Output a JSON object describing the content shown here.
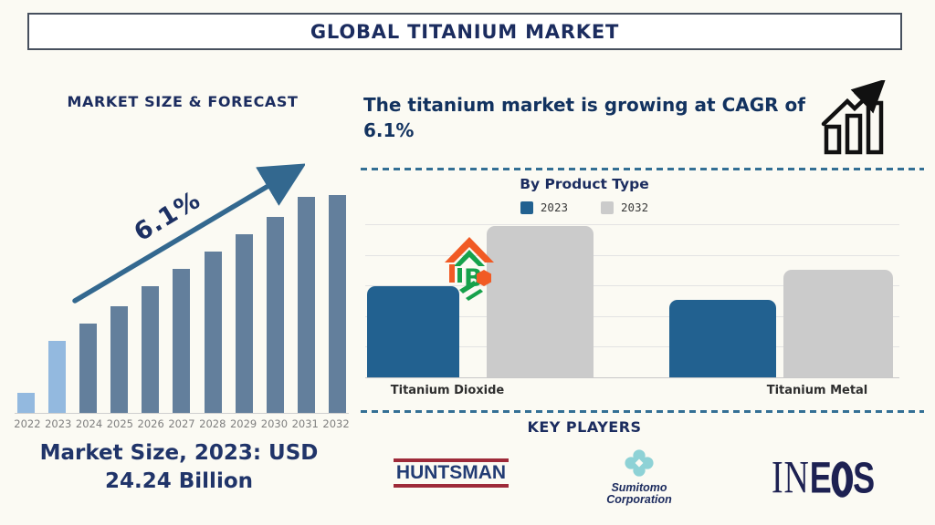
{
  "header": {
    "title": "GLOBAL TITANIUM MARKET"
  },
  "forecast_section": {
    "caption_lines": [
      "Market Size, 2023: USD",
      "24.24 Billion"
    ]
  },
  "cagr_section": {
    "headline": "The titanium market is growing at CAGR of 6.1%"
  },
  "key_players_section": {
    "title": "KEY PLAYERS",
    "players": [
      {
        "name": "HUNTSMAN"
      },
      {
        "name": "Sumitomo Corporation",
        "line1": "Sumitomo",
        "line2": "Corporation"
      },
      {
        "name": "INEOS",
        "part_in": "IN",
        "part_e": "E",
        "part_o": "O",
        "part_s": "S"
      }
    ]
  },
  "colors": {
    "navy_text": "#1b2c5f",
    "forecast_bar_light": "#93b9df",
    "forecast_bar_dark": "#637f9c",
    "arrow_blue": "#33688f",
    "dashed_line": "#336f94",
    "product_2023_blue": "#226190",
    "product_2032_gray": "#cbcbcb",
    "huntsman_red": "#9e2a39",
    "sumitomo_teal": "#8ed2d6",
    "ineos_navy": "#1d2152"
  },
  "chart_data": [
    {
      "type": "bar",
      "title": "MARKET SIZE & FORECAST",
      "categories": [
        "2022",
        "2023",
        "2024",
        "2025",
        "2026",
        "2027",
        "2028",
        "2029",
        "2030",
        "2031",
        "2032"
      ],
      "values_pct_of_max_bar": [
        9,
        33,
        41,
        49,
        58,
        66,
        74,
        82,
        90,
        99,
        100
      ],
      "bar_colors": [
        "#93b9df",
        "#93b9df",
        "#637f9c",
        "#637f9c",
        "#637f9c",
        "#637f9c",
        "#637f9c",
        "#637f9c",
        "#637f9c",
        "#637f9c",
        "#637f9c"
      ],
      "annotation": "6.1%",
      "anchor": {
        "category": "2023",
        "value": 24.24,
        "unit": "USD Billion"
      },
      "cagr_pct": 6.1,
      "axis_values_shown": false,
      "grid": false
    },
    {
      "type": "bar",
      "title": "By Product Type",
      "categories": [
        "Titanium Dioxide",
        "Titanium Metal"
      ],
      "series": [
        {
          "name": "2023",
          "color": "#226190",
          "values_pct_of_max_bar": [
            60,
            51
          ]
        },
        {
          "name": "2032",
          "color": "#cbcbcb",
          "values_pct_of_max_bar": [
            100,
            71
          ]
        }
      ],
      "legend_position": "top",
      "grid": true,
      "axis_values_shown": false
    }
  ]
}
